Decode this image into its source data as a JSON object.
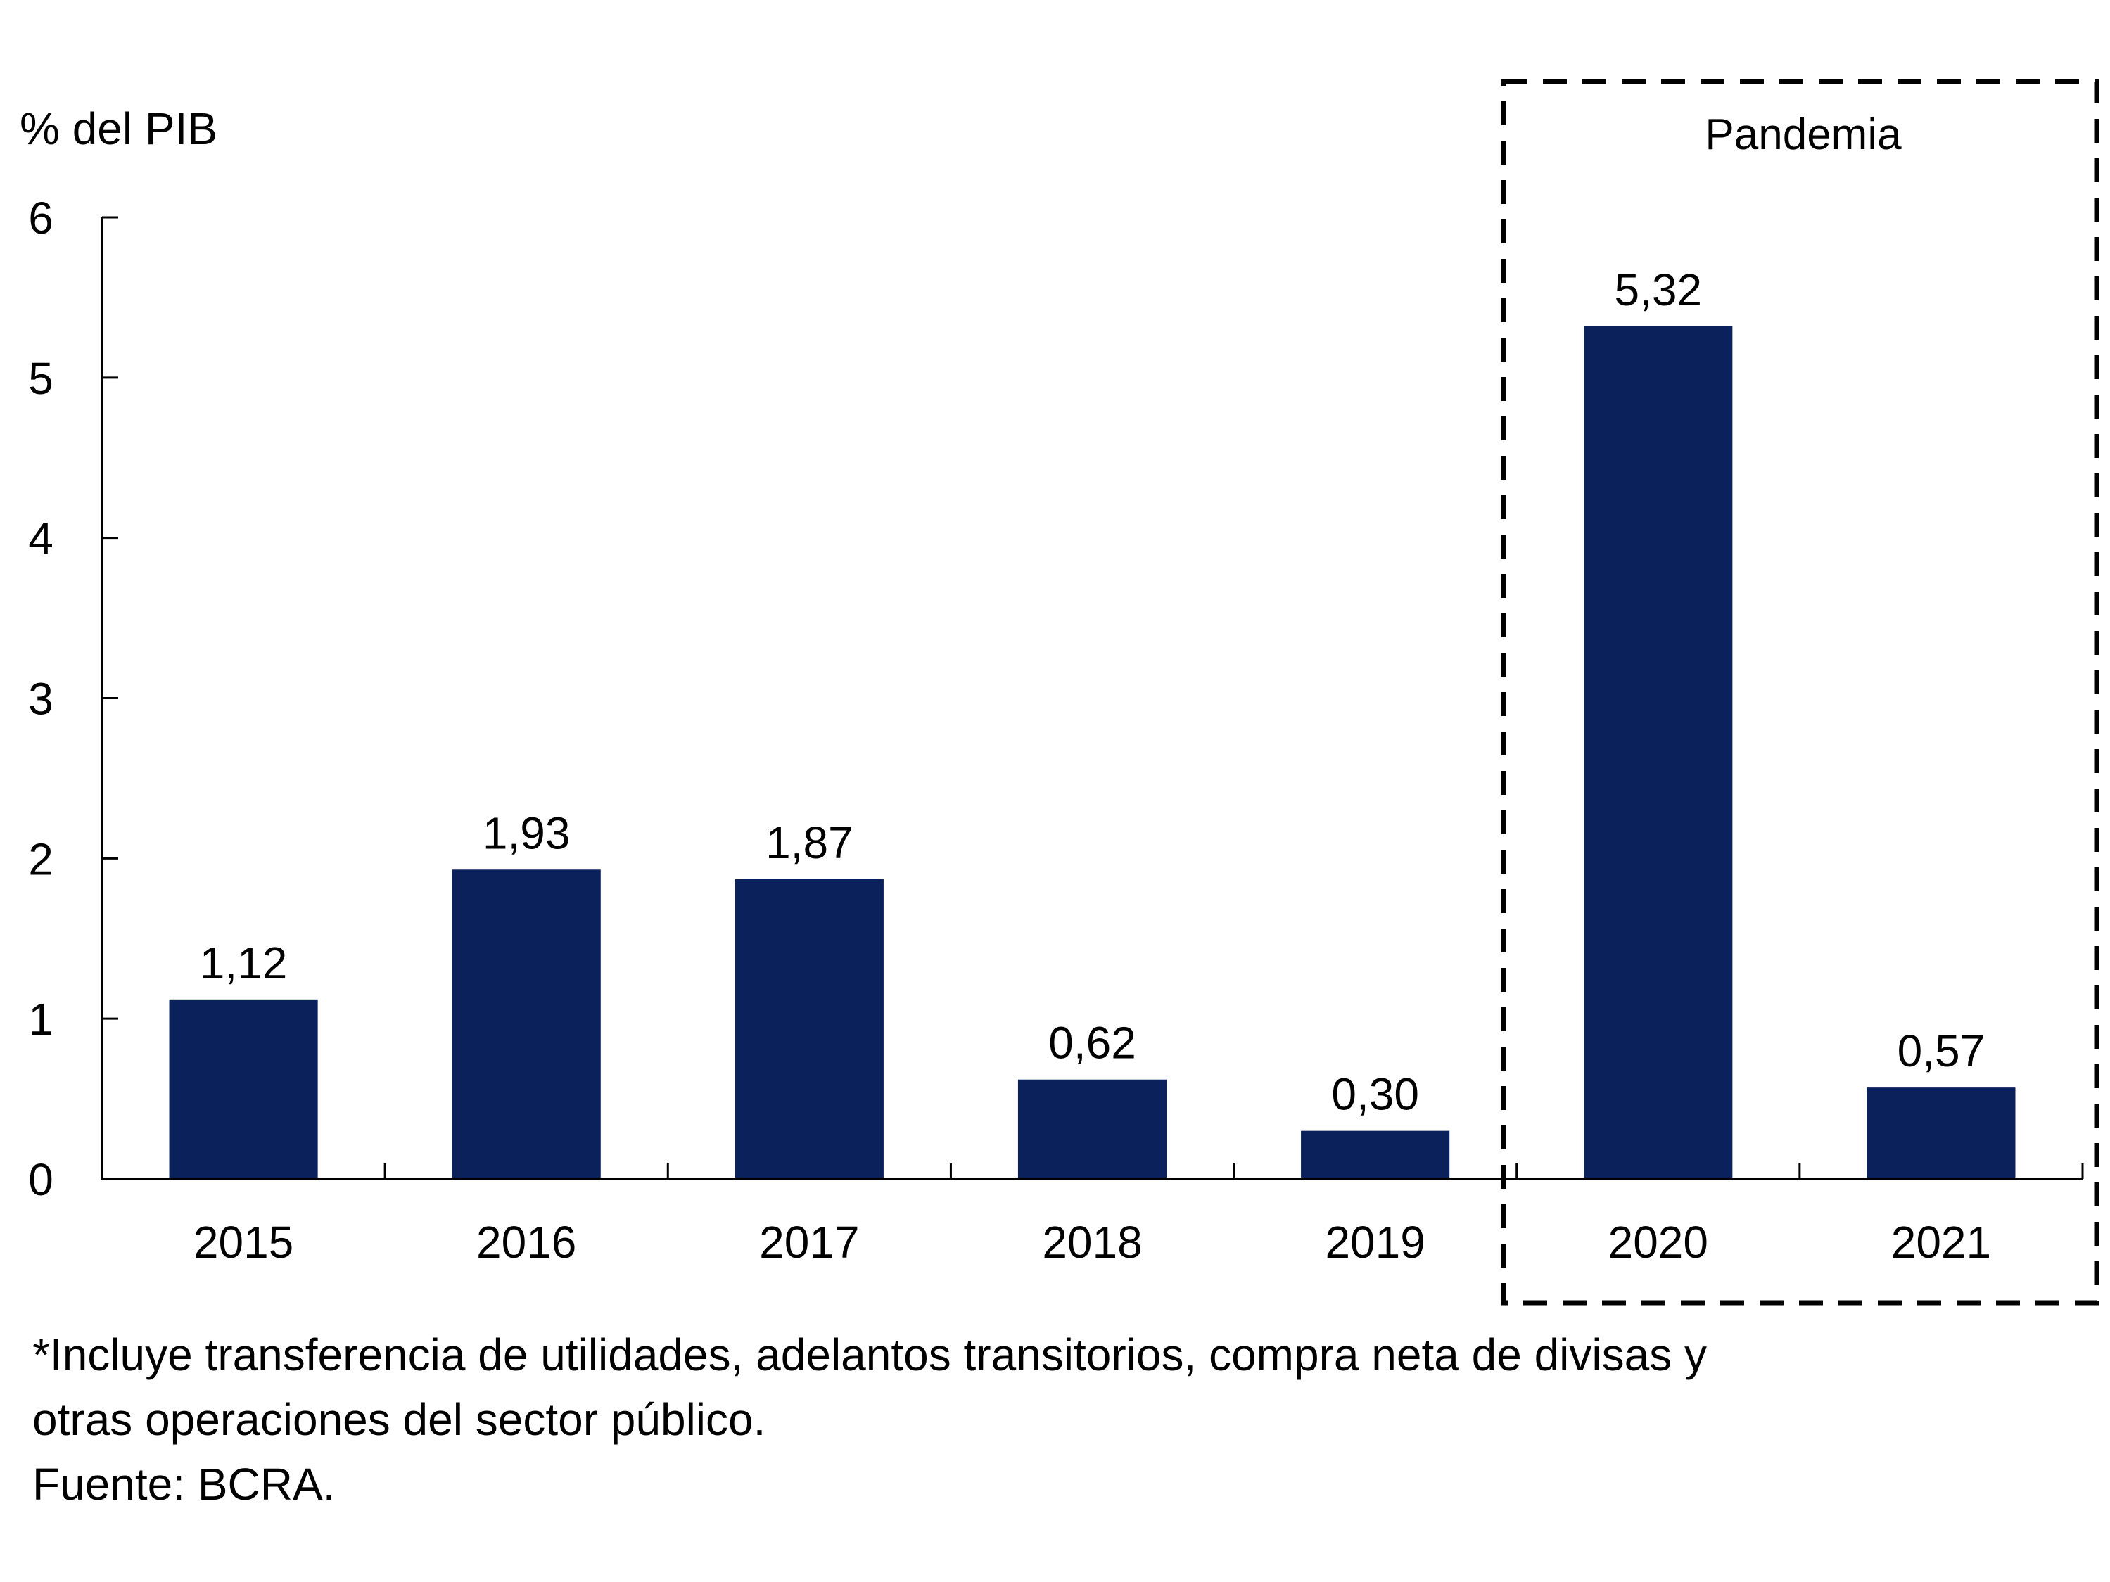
{
  "chart_data": {
    "type": "bar",
    "title": "",
    "ylabel": "% del PIB",
    "xlabel": "",
    "categories": [
      "2015",
      "2016",
      "2017",
      "2018",
      "2019",
      "2020",
      "2021"
    ],
    "values": [
      1.12,
      1.93,
      1.87,
      0.62,
      0.3,
      5.32,
      0.57
    ],
    "data_labels": [
      "1,12",
      "1,93",
      "1,87",
      "0,62",
      "0,30",
      "5,32",
      "0,57"
    ],
    "ylim": [
      0,
      6
    ],
    "yticks": [
      "0",
      "1",
      "2",
      "3",
      "4",
      "5",
      "6"
    ],
    "grid": false,
    "bar_color": "#0a215c",
    "annotations": [
      {
        "label": "Pandemia",
        "range": [
          "2020",
          "2021"
        ],
        "style": "dashed-box"
      }
    ]
  },
  "notes": {
    "line1": "*Incluye transferencia de utilidades, adelantos transitorios, compra neta de divisas y",
    "line2": "otras operaciones del sector público.",
    "source": "Fuente: BCRA."
  }
}
